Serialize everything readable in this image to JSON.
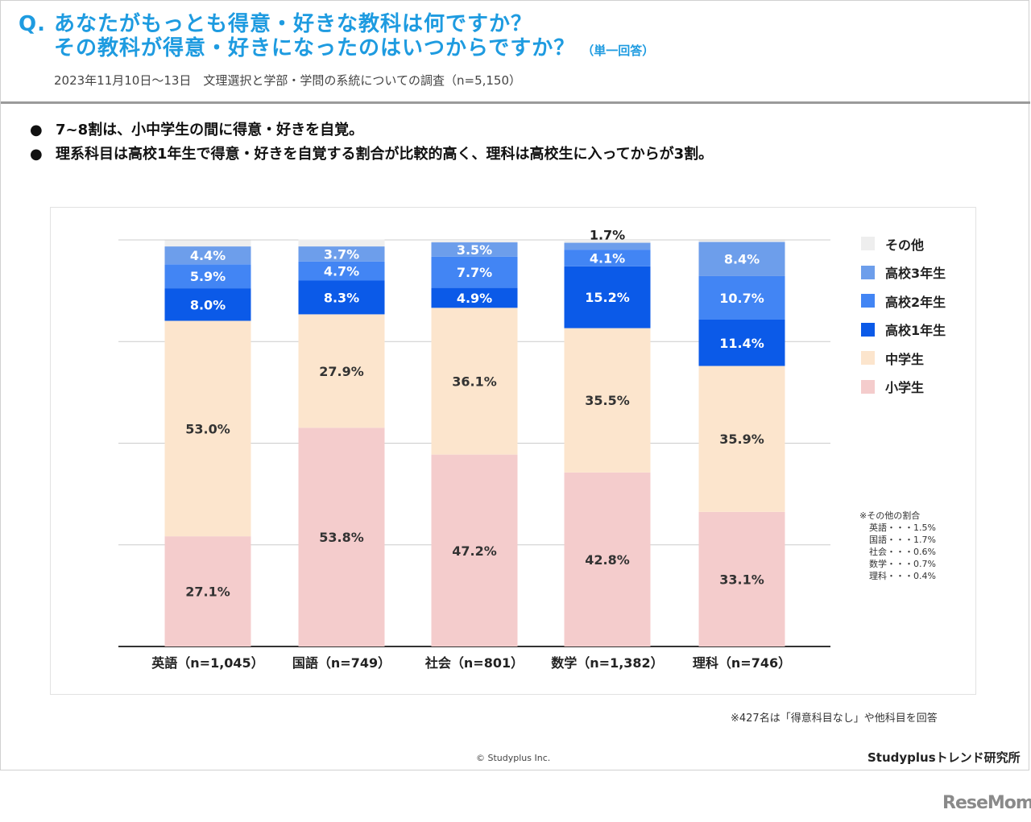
{
  "header": {
    "q_prefix": "Q.",
    "title_line1": "あなたがもっとも得意・好きな教科は何ですか？",
    "title_line2": "その教科が得意・好きになったのはいつからですか？",
    "answer_note": "（単一回答）",
    "subtitle": "2023年11月10日～13日　文理選択と学部・学問の系統についての調査（n=5,150）"
  },
  "bullets": [
    "7~8割は、小中学生の間に得意・好きを自覚。",
    "理系科目は高校1年生で得意・好きを自覚する割合が比較的高く、理科は高校生に入ってからが3割。"
  ],
  "bullet_symbol": "●",
  "chart_data": {
    "type": "bar",
    "stacked": true,
    "unit": "%",
    "categories": [
      "英語（n=1,045）",
      "国語（n=749）",
      "社会（n=801）",
      "数学（n=1,382）",
      "理科（n=746）"
    ],
    "series": [
      {
        "name": "小学生",
        "color": "#f4cccc",
        "values": [
          27.1,
          53.8,
          47.2,
          42.8,
          33.1
        ],
        "labels": [
          "27.1%",
          "53.8%",
          "47.2%",
          "42.8%",
          "33.1%"
        ]
      },
      {
        "name": "中学生",
        "color": "#fce5cd",
        "values": [
          53.0,
          27.9,
          36.1,
          35.5,
          35.9
        ],
        "labels": [
          "53.0%",
          "27.9%",
          "36.1%",
          "35.5%",
          "35.9%"
        ]
      },
      {
        "name": "高校1年生",
        "color": "#0b5ae8",
        "values": [
          8.0,
          8.3,
          4.9,
          15.2,
          11.4
        ],
        "labels": [
          "8.0%",
          "8.3%",
          "4.9%",
          "15.2%",
          "11.4%"
        ]
      },
      {
        "name": "高校2年生",
        "color": "#4285f4",
        "values": [
          5.9,
          4.7,
          7.7,
          4.1,
          10.7
        ],
        "labels": [
          "5.9%",
          "4.7%",
          "7.7%",
          "4.1%",
          "10.7%"
        ]
      },
      {
        "name": "高校3年生",
        "color": "#6d9eeb",
        "values": [
          4.4,
          3.7,
          3.5,
          1.7,
          8.4
        ],
        "labels": [
          "4.4%",
          "3.7%",
          "3.5%",
          "1.7%",
          "8.4%"
        ]
      },
      {
        "name": "その他",
        "color": "#eeeeee",
        "values": [
          1.5,
          1.7,
          0.6,
          0.7,
          0.4
        ],
        "labels": [
          "",
          "",
          "",
          "",
          ""
        ]
      }
    ],
    "ylim": [
      0,
      100
    ],
    "gridlines": [
      0,
      25,
      50,
      75,
      100
    ],
    "legend_order": [
      "その他",
      "高校3年生",
      "高校2年生",
      "高校1年生",
      "中学生",
      "小学生"
    ],
    "legend_position": "right"
  },
  "other_note": {
    "title": "※その他の割合",
    "rows": [
      "英語・・・1.5%",
      "国語・・・1.7%",
      "社会・・・0.6%",
      "数学・・・0.7%",
      "理科・・・0.4%"
    ]
  },
  "footnote": "※427名は「得意科目なし」や他科目を回答",
  "copyright": "© Studyplus Inc.",
  "brand": "Studyplusトレンド研究所",
  "logo": "ReseMom"
}
